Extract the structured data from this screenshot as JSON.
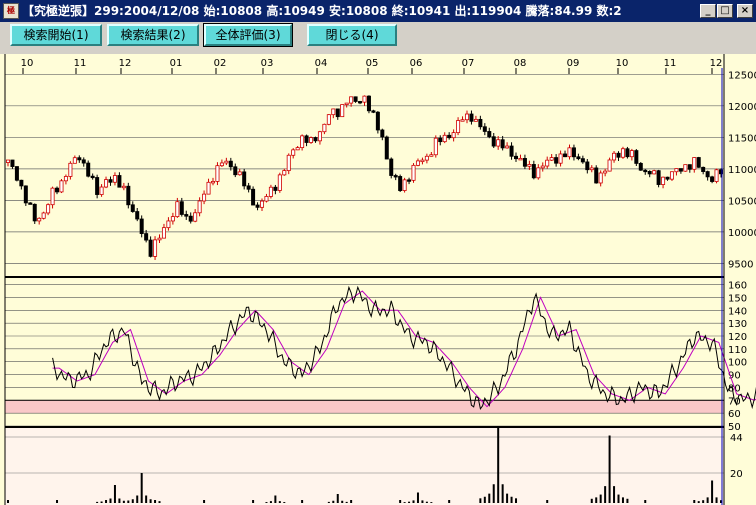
{
  "window": {
    "icon_label": "極",
    "title": "【究極逆張】299:2004/12/08 始:10808 高:10949 安:10808 終:10941 出:119904 騰落:84.99 数:2",
    "minimize_glyph": "_",
    "maximize_glyph": "□",
    "close_glyph": "×"
  },
  "toolbar": {
    "buttons": [
      {
        "label": "検索開始(1)"
      },
      {
        "label": "検索結果(2)"
      },
      {
        "label": "全体評価(3)"
      },
      {
        "label": "閉じる(4)"
      }
    ]
  },
  "chart": {
    "month_labels": [
      "10",
      "11",
      "12",
      "01",
      "02",
      "03",
      "04",
      "05",
      "06",
      "07",
      "08",
      "09",
      "10",
      "11",
      "12"
    ],
    "price_axis": [
      "12500",
      "12000",
      "11500",
      "11000",
      "10500",
      "10000",
      "9500"
    ],
    "osc_axis": [
      "160",
      "150",
      "140",
      "130",
      "120",
      "110",
      "100",
      "90",
      "80",
      "70",
      "60",
      "50"
    ],
    "vol_axis": [
      "44",
      "20"
    ],
    "colors": {
      "up": "#d00000",
      "down": "#000000",
      "osc_line": "#000000",
      "osc_ma": "#c000c0",
      "band": "#f9c8c8",
      "background": "#fffdd8",
      "cursor": "#0000c0"
    }
  },
  "chart_data": [
    {
      "type": "candlestick",
      "name": "price",
      "ylim": [
        9300,
        12600
      ],
      "ticks": [
        12500,
        12000,
        11500,
        11000,
        10500,
        10000,
        9500
      ],
      "anchors": [
        [
          0,
          11100
        ],
        [
          2,
          10900
        ],
        [
          4,
          10500
        ],
        [
          6,
          10200
        ],
        [
          8,
          10300
        ],
        [
          10,
          10600
        ],
        [
          12,
          10800
        ],
        [
          14,
          11050
        ],
        [
          16,
          11200
        ],
        [
          18,
          10950
        ],
        [
          20,
          10600
        ],
        [
          22,
          10850
        ],
        [
          24,
          10800
        ],
        [
          26,
          10700
        ],
        [
          28,
          10300
        ],
        [
          30,
          10000
        ],
        [
          32,
          9700
        ],
        [
          34,
          9900
        ],
        [
          36,
          10200
        ],
        [
          38,
          10400
        ],
        [
          40,
          10200
        ],
        [
          42,
          10300
        ],
        [
          44,
          10600
        ],
        [
          46,
          10900
        ],
        [
          48,
          11100
        ],
        [
          50,
          11050
        ],
        [
          52,
          10900
        ],
        [
          54,
          10600
        ],
        [
          56,
          10400
        ],
        [
          58,
          10550
        ],
        [
          60,
          10750
        ],
        [
          62,
          11000
        ],
        [
          64,
          11300
        ],
        [
          66,
          11500
        ],
        [
          68,
          11400
        ],
        [
          70,
          11600
        ],
        [
          72,
          11850
        ],
        [
          74,
          11900
        ],
        [
          76,
          12100
        ],
        [
          78,
          12050
        ],
        [
          80,
          12150
        ],
        [
          82,
          11800
        ],
        [
          84,
          11500
        ],
        [
          86,
          10900
        ],
        [
          88,
          10700
        ],
        [
          90,
          10900
        ],
        [
          92,
          11100
        ],
        [
          94,
          11200
        ],
        [
          96,
          11400
        ],
        [
          98,
          11500
        ],
        [
          100,
          11600
        ],
        [
          102,
          11800
        ],
        [
          104,
          11850
        ],
        [
          106,
          11650
        ],
        [
          108,
          11500
        ],
        [
          110,
          11400
        ],
        [
          112,
          11300
        ],
        [
          114,
          11200
        ],
        [
          116,
          11050
        ],
        [
          118,
          10950
        ],
        [
          120,
          11050
        ],
        [
          122,
          11150
        ],
        [
          124,
          11200
        ],
        [
          126,
          11250
        ],
        [
          128,
          11200
        ],
        [
          130,
          11000
        ],
        [
          132,
          10850
        ],
        [
          134,
          11000
        ],
        [
          136,
          11200
        ],
        [
          138,
          11300
        ],
        [
          140,
          11200
        ],
        [
          142,
          11000
        ],
        [
          144,
          10950
        ],
        [
          146,
          10800
        ],
        [
          148,
          10900
        ],
        [
          150,
          10950
        ],
        [
          152,
          11050
        ],
        [
          154,
          11100
        ],
        [
          156,
          10950
        ],
        [
          158,
          10850
        ],
        [
          160,
          10950
        ]
      ]
    },
    {
      "type": "line",
      "name": "oscillator",
      "ylim": [
        50,
        162
      ],
      "ticks": [
        160,
        150,
        140,
        130,
        120,
        110,
        100,
        90,
        80,
        70,
        60,
        50
      ],
      "band": [
        60,
        70
      ],
      "anchors": [
        [
          10,
          95
        ],
        [
          14,
          85
        ],
        [
          18,
          90
        ],
        [
          22,
          115
        ],
        [
          26,
          125
        ],
        [
          30,
          85
        ],
        [
          34,
          75
        ],
        [
          38,
          85
        ],
        [
          42,
          90
        ],
        [
          46,
          105
        ],
        [
          50,
          125
        ],
        [
          54,
          140
        ],
        [
          58,
          125
        ],
        [
          62,
          100
        ],
        [
          66,
          90
        ],
        [
          70,
          110
        ],
        [
          74,
          145
        ],
        [
          78,
          155
        ],
        [
          82,
          140
        ],
        [
          86,
          140
        ],
        [
          90,
          120
        ],
        [
          94,
          115
        ],
        [
          98,
          100
        ],
        [
          102,
          80
        ],
        [
          106,
          65
        ],
        [
          110,
          80
        ],
        [
          114,
          110
        ],
        [
          118,
          150
        ],
        [
          122,
          120
        ],
        [
          126,
          125
        ],
        [
          130,
          90
        ],
        [
          134,
          75
        ],
        [
          138,
          70
        ],
        [
          142,
          80
        ],
        [
          146,
          75
        ],
        [
          150,
          95
        ],
        [
          154,
          120
        ],
        [
          158,
          115
        ],
        [
          162,
          75
        ],
        [
          166,
          70
        ],
        [
          170,
          80
        ],
        [
          174,
          75
        ],
        [
          178,
          80
        ],
        [
          182,
          95
        ],
        [
          186,
          95
        ],
        [
          190,
          90
        ]
      ]
    },
    {
      "type": "bar",
      "name": "signal_count",
      "ylim": [
        0,
        50
      ],
      "ticks": [
        44,
        20
      ],
      "spikes": [
        [
          110,
          50
        ],
        [
          135,
          45
        ],
        [
          30,
          20
        ],
        [
          24,
          12
        ],
        [
          158,
          15
        ],
        [
          170,
          8
        ],
        [
          92,
          7
        ],
        [
          60,
          5
        ],
        [
          74,
          6
        ]
      ]
    }
  ]
}
